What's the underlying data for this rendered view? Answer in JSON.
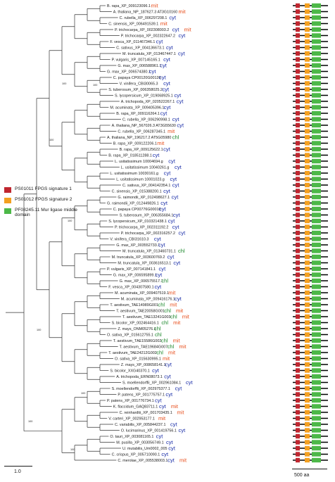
{
  "colors": {
    "cyt": "#1a2ea8",
    "mit": "#e8501e",
    "chl": "#1f8a2e",
    "sig1": "#c0262f",
    "sig2": "#f3a020",
    "mur": "#4cb848"
  },
  "legend": [
    {
      "id": "sig1",
      "label": "PS01011 FPGS signature 1"
    },
    {
      "id": "sig2",
      "label": "PS01012 FPGS signature 2"
    },
    {
      "id": "mur",
      "label": "PF08245.11 Mur ligase middle domain"
    }
  ],
  "scale": {
    "tree": "1.0",
    "domain": "500 aa"
  },
  "internal_labels": [
    "100",
    "100",
    "100",
    "100",
    "100",
    "100",
    "100",
    "100"
  ],
  "leaves": [
    {
      "name": "B. rapa_XP_009123096.1",
      "loc": "mit",
      "doms": [
        2,
        3,
        1
      ]
    },
    {
      "name": "A. thaliana_NP_187627.3 AT3G10160",
      "loc": "mit",
      "doms": [
        2,
        3,
        1
      ]
    },
    {
      "name": "C. rubella_XP_006297208.1",
      "loc": "cyt",
      "doms": [
        2,
        3,
        1
      ]
    },
    {
      "name": "C. sinensis_XP_006491539.1",
      "loc": "mit",
      "doms": [
        2,
        3,
        1
      ]
    },
    {
      "name": "P. trichocarpa_XP_002308003.2",
      "loc": "cyt mit",
      "doms": [
        2,
        3,
        1
      ]
    },
    {
      "name": "P. trichocarpa_XP_002322647.2",
      "loc": "cyt",
      "doms": [
        2,
        3,
        1
      ]
    },
    {
      "name": "F. vesca_XP_011467346.1",
      "loc": "cyt",
      "doms": [
        2,
        3,
        1
      ]
    },
    {
      "name": "C. sativus_XP_004136673.1",
      "loc": "cyt",
      "doms": [
        2,
        3,
        1
      ]
    },
    {
      "name": "M. truncatula_XP_013467447.1",
      "loc": "cyt",
      "doms": [
        2,
        3,
        1
      ]
    },
    {
      "name": "P. vulgaris_XP_007145165.1",
      "loc": "cyt",
      "doms": [
        2,
        3,
        1
      ]
    },
    {
      "name": "G. max_XP_006588961.1",
      "loc": "cyt",
      "doms": [
        2,
        3,
        1
      ]
    },
    {
      "name": "G. max_XP_006574380.1",
      "loc": "cyt",
      "doms": [
        2,
        3,
        1
      ]
    },
    {
      "name": "C. papaya CP00120G00120",
      "loc": "cyt",
      "doms": [
        2,
        3,
        1
      ]
    },
    {
      "name": "V. vinifera_CBI30065.3",
      "loc": "cyt",
      "doms": [
        2,
        3,
        1
      ]
    },
    {
      "name": "S. tuberosum_XP_006358025.2",
      "loc": "cyt",
      "doms": [
        2,
        3,
        1
      ]
    },
    {
      "name": "S. lycopersicum_XP_019068925.1",
      "loc": "cyt",
      "doms": [
        2,
        3,
        1
      ]
    },
    {
      "name": "A. trichopoda_XP_020522267.1",
      "loc": "cyt",
      "doms": [
        2,
        3,
        1
      ]
    },
    {
      "name": "M. acuminata_XP_009405396.1",
      "loc": "cyt",
      "doms": [
        2,
        3,
        1
      ]
    },
    {
      "name": "B. rapa_XP_009116264.1",
      "loc": "cyt",
      "doms": [
        2,
        3,
        1
      ]
    },
    {
      "name": "C. rubella_XP_006290998.1",
      "loc": "cyt",
      "doms": [
        2,
        3,
        1
      ]
    },
    {
      "name": "A. thaliana_NP_567026.3 AT3G55630",
      "loc": "cyt",
      "doms": [
        2,
        3,
        1
      ]
    },
    {
      "name": "C. rubella_XP_006287345.1",
      "loc": "mit",
      "doms": [
        2,
        3,
        1
      ]
    },
    {
      "name": "A. thaliana_NP_196217.2 AT5G05980",
      "loc": "chl",
      "doms": [
        2,
        3,
        1
      ]
    },
    {
      "name": "B. rapa_XP_009122206.1",
      "loc": "mit",
      "doms": [
        2,
        3,
        1
      ]
    },
    {
      "name": "B. rapa_XP_009125622.1",
      "loc": "cyt",
      "doms": [
        2,
        3,
        1
      ]
    },
    {
      "name": "B. rapa_XP_018511288.1",
      "loc": "cyt",
      "doms": [
        2,
        3,
        1
      ]
    },
    {
      "name": "L. usitatissimum 10004694.g",
      "loc": "cyt",
      "doms": [
        2,
        3,
        1
      ]
    },
    {
      "name": "L. usitatissimum 10040261.g",
      "loc": "cyt",
      "doms": [
        2,
        3,
        1
      ]
    },
    {
      "name": "L. usitatissimum 10030161.g",
      "loc": "cyt",
      "doms": [
        2,
        3,
        1
      ]
    },
    {
      "name": "L. usitatissimum 10001023.g",
      "loc": "cyt",
      "doms": [
        2,
        3,
        1
      ]
    },
    {
      "name": "C. sativus_XP_004142354.1",
      "loc": "cyt",
      "doms": [
        2,
        3,
        1
      ]
    },
    {
      "name": "C. sinensis_XP_015388200.1",
      "loc": "cyt",
      "doms": [
        2,
        3,
        1
      ]
    },
    {
      "name": "G. raimondii_XP_012498627.1",
      "loc": "cyt",
      "doms": [
        2,
        3,
        1
      ]
    },
    {
      "name": "G. raimondii_XP_012449826.1",
      "loc": "cyt",
      "doms": [
        2,
        3,
        1
      ]
    },
    {
      "name": "C. papaya CP00776G00010",
      "loc": "cyt",
      "doms": [
        2,
        3,
        1
      ]
    },
    {
      "name": "S. tuberosum_XP_006355684.1",
      "loc": "cyt",
      "doms": [
        2,
        3,
        1
      ]
    },
    {
      "name": "S. lycopersicum_XP_010321438.1",
      "loc": "cyt",
      "doms": [
        2,
        3,
        1
      ]
    },
    {
      "name": "P. trichocarpa_XP_002311192.2",
      "loc": "cyt",
      "doms": [
        2,
        3,
        1
      ]
    },
    {
      "name": "P. trichocarpa_XP_002316257.2",
      "loc": "cyt",
      "doms": [
        2,
        3,
        1
      ]
    },
    {
      "name": "V. vinifera_CBI31610.3",
      "loc": "cyt",
      "doms": [
        2,
        3,
        1
      ]
    },
    {
      "name": "G. max_XP_003552733.1",
      "loc": "cyt",
      "doms": [
        2,
        3,
        1
      ]
    },
    {
      "name": "M. truncatula_XP_013460731.1",
      "loc": "chl",
      "doms": [
        2,
        3,
        1
      ]
    },
    {
      "name": "M. truncatula_XP_003600769.2",
      "loc": "cyt",
      "doms": [
        2,
        3,
        1
      ]
    },
    {
      "name": "M. truncatula_XP_003616513.1",
      "loc": "cyt",
      "doms": [
        2,
        3,
        1
      ]
    },
    {
      "name": "P. vulgaris_XP_007141841.1",
      "loc": "cyt",
      "doms": [
        2,
        3,
        1
      ]
    },
    {
      "name": "G. max_XP_006595899.1",
      "loc": "cyt",
      "doms": [
        2,
        3,
        1
      ]
    },
    {
      "name": "G. max_XP_006575517.1",
      "loc": "chl",
      "doms": [
        2,
        3,
        1
      ]
    },
    {
      "name": "F. vesca_XP_004307580.1",
      "loc": "cyt",
      "doms": [
        2,
        3,
        1
      ]
    },
    {
      "name": "M. acuminata_XP_009407519.1",
      "loc": "mit",
      "doms": [
        2,
        3,
        1
      ]
    },
    {
      "name": "M. acuminata_XP_009416176.1",
      "loc": "cyt",
      "doms": [
        2,
        3,
        1
      ]
    },
    {
      "name": "T. aestivum_TAE14989G001",
      "loc": "chl mit",
      "doms": [
        2,
        3,
        1
      ]
    },
    {
      "name": "T. aestivum_TAE20058G001",
      "loc": "chl mit",
      "doms": [
        2,
        3,
        1
      ]
    },
    {
      "name": "T. aestivum_TAE13241G003",
      "loc": "chl mit",
      "doms": [
        2,
        3,
        1
      ]
    },
    {
      "name": "S. bicolor_XP_002464416.1",
      "loc": "chl mit",
      "doms": [
        2,
        3,
        1
      ]
    },
    {
      "name": "Z. mays_ONM05276.1",
      "loc": "chl",
      "doms": [
        2,
        3,
        1
      ]
    },
    {
      "name": "O. sativa_XP_015612755.1",
      "loc": "chl",
      "doms": [
        2,
        3,
        1
      ]
    },
    {
      "name": "T. aestivum_TAE15586G002",
      "loc": "chl mit",
      "doms": [
        2,
        3,
        1
      ]
    },
    {
      "name": "T. aestivum_TAE19684G007",
      "loc": "chl mit",
      "doms": [
        2,
        3,
        1
      ]
    },
    {
      "name": "T. aestivum_TAE24212G002",
      "loc": "chl mit",
      "doms": [
        2,
        3,
        1
      ]
    },
    {
      "name": "O. sativa_XP_015630995.1",
      "loc": "mit",
      "doms": [
        2,
        3,
        1
      ]
    },
    {
      "name": "Z. mays_XP_008658141.1",
      "loc": "cyt",
      "doms": [
        2,
        3,
        1
      ]
    },
    {
      "name": "S. bicolor_XXG40370.1",
      "loc": "cyt",
      "doms": [
        2,
        3,
        1
      ]
    },
    {
      "name": "A. trichopoda_ERN08073.1",
      "loc": "cyt",
      "doms": [
        2,
        3,
        1
      ]
    },
    {
      "name": "S. moellendorffii_XP_002961084.1",
      "loc": "cyt",
      "doms": [
        2,
        3,
        1
      ]
    },
    {
      "name": "S. moellendorffii_XP_002975377.1",
      "loc": "cyt",
      "doms": [
        2,
        3,
        1
      ]
    },
    {
      "name": "P. patens_XP_001775757.1",
      "loc": "cyt",
      "doms": [
        2,
        3,
        1
      ]
    },
    {
      "name": "P. patens_XP_001776734.1",
      "loc": "cyt",
      "doms": [
        2,
        3,
        1
      ]
    },
    {
      "name": "K. flaccidum_GAQ83711.1",
      "loc": "cyt mit",
      "doms": [
        2,
        3,
        1
      ]
    },
    {
      "name": "C. reinhardtii_XP_001703435.1",
      "loc": "mit",
      "doms": [
        2,
        3,
        1
      ]
    },
    {
      "name": "V. carteri_XP_002953177.1",
      "loc": "mit",
      "doms": [
        2,
        3,
        1
      ]
    },
    {
      "name": "C. variabilis_XP_005844237.1",
      "loc": "cyt",
      "doms": [
        2,
        3,
        1
      ]
    },
    {
      "name": "O. lucimarinus_XP_001419756.1",
      "loc": "cyt",
      "doms": [
        2,
        3,
        1
      ]
    },
    {
      "name": "O. tauri_XP_003081165.1",
      "loc": "cyt",
      "doms": [
        2,
        3,
        1
      ]
    },
    {
      "name": "M. pusilla_XP_003056749.1",
      "loc": "cyt",
      "doms": [
        2,
        3,
        1
      ]
    },
    {
      "name": "U. mutabilis_Um0002_005",
      "loc": "cyt",
      "doms": [
        2,
        3,
        1
      ]
    },
    {
      "name": "C. crispus_XP_005710090.1",
      "loc": "cyt",
      "doms": [
        2,
        3,
        1
      ]
    },
    {
      "name": "C. merolae_XP_005538003.1",
      "loc": "cyt mit",
      "doms": [
        2,
        3,
        1
      ]
    }
  ]
}
